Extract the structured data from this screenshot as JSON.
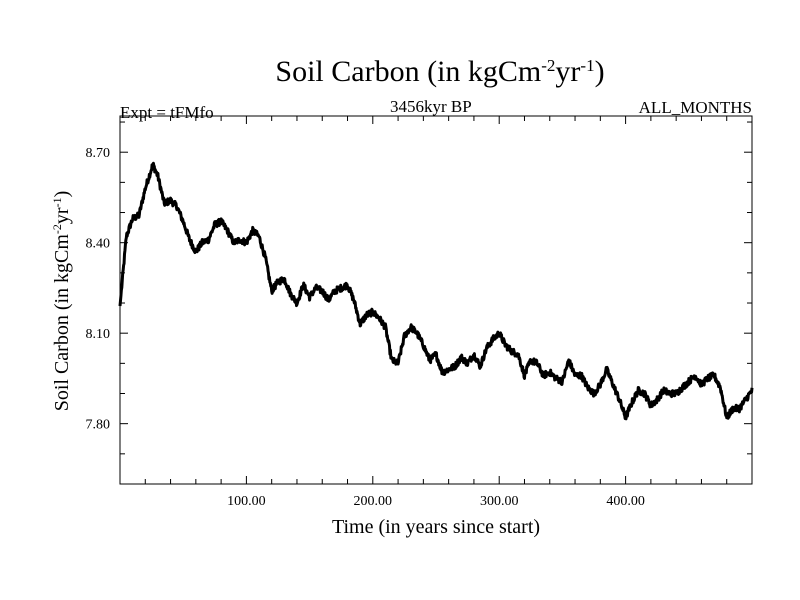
{
  "chart_data": {
    "type": "line",
    "title": "Soil Carbon (in kgCm",
    "title_sup1": "-2",
    "title_mid": "yr",
    "title_sup2": "-1",
    "title_end": ")",
    "experiment": "Expt = tFMfo",
    "date_label": "3456kyr BP",
    "months_label": "ALL_MONTHS",
    "xlabel": "Time (in years since start)",
    "ylabel": "Soil Carbon (in kgCm",
    "ylabel_sup1": "-2",
    "ylabel_mid": "yr",
    "ylabel_sup2": "-1",
    "ylabel_end": ")",
    "xlim": [
      0,
      500
    ],
    "ylim": [
      7.6,
      8.82
    ],
    "xticks": [
      100,
      200,
      300,
      400
    ],
    "xtick_labels": [
      "100.00",
      "200.00",
      "300.00",
      "400.00"
    ],
    "yticks": [
      7.8,
      8.1,
      8.4,
      8.7
    ],
    "ytick_labels": [
      "7.80",
      "8.10",
      "8.40",
      "8.70"
    ],
    "series": [
      {
        "name": "Soil Carbon",
        "color": "#000000",
        "x": [
          0,
          5,
          10,
          15,
          20,
          26,
          30,
          35,
          40,
          45,
          50,
          55,
          60,
          65,
          70,
          75,
          80,
          85,
          90,
          95,
          100,
          105,
          110,
          115,
          120,
          125,
          130,
          135,
          140,
          145,
          150,
          155,
          160,
          165,
          170,
          175,
          180,
          185,
          190,
          195,
          200,
          205,
          210,
          215,
          220,
          225,
          230,
          235,
          240,
          245,
          250,
          255,
          260,
          265,
          270,
          275,
          280,
          285,
          290,
          295,
          300,
          305,
          310,
          315,
          320,
          325,
          330,
          335,
          340,
          345,
          350,
          355,
          360,
          365,
          370,
          375,
          380,
          385,
          390,
          395,
          400,
          405,
          410,
          415,
          420,
          425,
          430,
          435,
          440,
          445,
          450,
          455,
          460,
          465,
          470,
          475,
          480,
          485,
          490,
          495,
          500
        ],
        "y": [
          8.19,
          8.42,
          8.48,
          8.49,
          8.58,
          8.66,
          8.62,
          8.53,
          8.54,
          8.52,
          8.47,
          8.41,
          8.37,
          8.4,
          8.41,
          8.46,
          8.47,
          8.44,
          8.4,
          8.41,
          8.4,
          8.44,
          8.42,
          8.35,
          8.24,
          8.27,
          8.28,
          8.23,
          8.2,
          8.26,
          8.22,
          8.25,
          8.24,
          8.21,
          8.24,
          8.25,
          8.26,
          8.21,
          8.13,
          8.16,
          8.17,
          8.15,
          8.12,
          8.01,
          8.0,
          8.09,
          8.12,
          8.1,
          8.06,
          8.01,
          8.03,
          7.97,
          7.98,
          7.99,
          8.02,
          8.0,
          8.03,
          7.99,
          8.05,
          8.08,
          8.1,
          8.06,
          8.04,
          8.03,
          7.96,
          8.01,
          8.0,
          7.96,
          7.97,
          7.95,
          7.94,
          8.01,
          7.96,
          7.96,
          7.92,
          7.9,
          7.93,
          7.98,
          7.93,
          7.88,
          7.82,
          7.87,
          7.91,
          7.9,
          7.86,
          7.88,
          7.91,
          7.9,
          7.9,
          7.92,
          7.94,
          7.96,
          7.93,
          7.95,
          7.96,
          7.92,
          7.82,
          7.85,
          7.85,
          7.88,
          7.91
        ]
      }
    ]
  }
}
